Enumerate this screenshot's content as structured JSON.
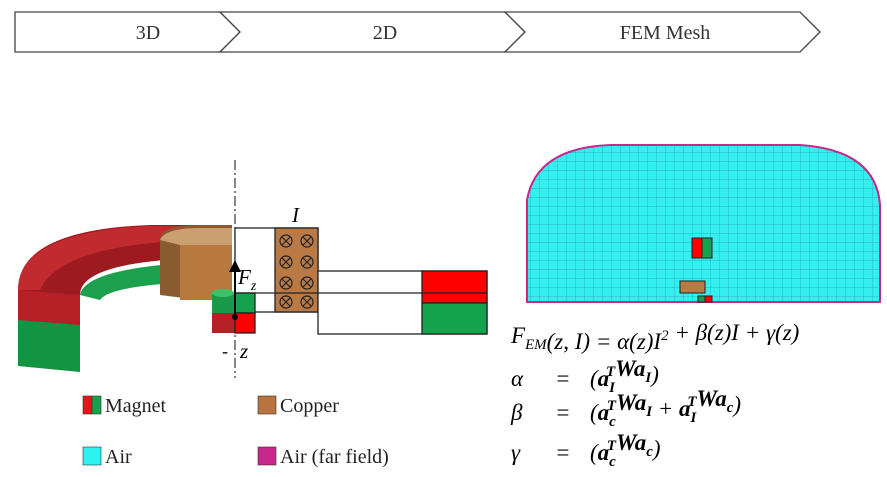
{
  "header": {
    "steps": [
      "3D",
      "2D",
      "FEM Mesh"
    ]
  },
  "schematic": {
    "current": "I",
    "force": {
      "base": "F",
      "sub": "z"
    },
    "axis": "z"
  },
  "legend": [
    {
      "label": "Magnet",
      "colors": [
        "#e8131b",
        "#14a34c"
      ]
    },
    {
      "label": "Copper",
      "colors": [
        "#b8733f"
      ]
    },
    {
      "label": "Air",
      "colors": [
        "#2ff2f2"
      ]
    },
    {
      "label": "Air (far field)",
      "colors": [
        "#c8288c"
      ]
    }
  ],
  "equations": [
    {
      "lhs": [
        {
          "base": "F",
          "sub": "EM"
        },
        {
          "base": "(z, I) = α(z)I",
          "sup": "2"
        },
        {
          "base": " + β(z)I + γ(z)"
        }
      ]
    },
    {
      "lhs": [
        {
          "base": "α"
        }
      ],
      "eq": "=",
      "rhs": [
        {
          "base": "("
        },
        {
          "base": "a",
          "sub": "I",
          "sup": "T",
          "bold": true
        },
        {
          "base": "W",
          "bold": true
        },
        {
          "base": "a",
          "sub": "I",
          "bold": true
        },
        {
          "base": ")"
        }
      ]
    },
    {
      "lhs": [
        {
          "base": "β"
        }
      ],
      "eq": "=",
      "rhs": [
        {
          "base": "("
        },
        {
          "base": "a",
          "sub": "c",
          "sup": "T",
          "bold": true
        },
        {
          "base": "W",
          "bold": true
        },
        {
          "base": "a",
          "sub": "I",
          "bold": true
        },
        {
          "base": " + "
        },
        {
          "base": "a",
          "sub": "I",
          "sup": "T",
          "bold": true
        },
        {
          "base": "W",
          "bold": true
        },
        {
          "base": "a",
          "sub": "c",
          "bold": true
        },
        {
          "base": ")"
        }
      ]
    },
    {
      "lhs": [
        {
          "base": "γ"
        }
      ],
      "eq": "=",
      "rhs": [
        {
          "base": "("
        },
        {
          "base": "a",
          "sub": "c",
          "sup": "T",
          "bold": true
        },
        {
          "base": "W",
          "bold": true
        },
        {
          "base": "a",
          "sub": "c",
          "bold": true
        },
        {
          "base": ")"
        }
      ]
    }
  ]
}
